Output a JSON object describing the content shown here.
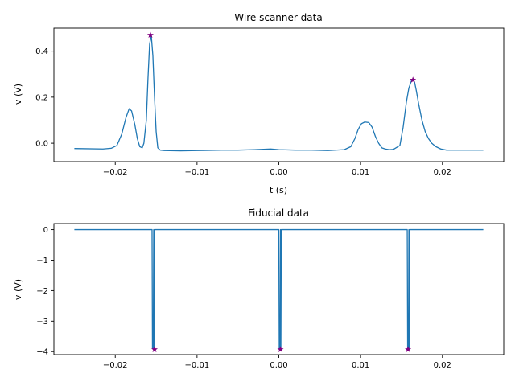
{
  "figure": {
    "background": "#ffffff",
    "line_color": "#1f77b4",
    "marker_color": "#800080",
    "marker_symbol": "star"
  },
  "chart_data": [
    {
      "type": "line",
      "title": "Wire scanner data",
      "xlabel": "t (s)",
      "ylabel": "v (V)",
      "xlim": [
        -0.0275,
        0.0275
      ],
      "ylim": [
        -0.08,
        0.5
      ],
      "xticks": [
        -0.02,
        -0.01,
        0.0,
        0.01,
        0.02
      ],
      "xtick_labels": [
        "−0.02",
        "−0.01",
        "0.00",
        "0.01",
        "0.02"
      ],
      "yticks": [
        0.0,
        0.2,
        0.4
      ],
      "ytick_labels": [
        "0.0",
        "0.2",
        "0.4"
      ],
      "grid": false,
      "series": [
        {
          "color": "#1f77b4",
          "x": [
            -0.025,
            -0.0215,
            -0.0205,
            -0.0198,
            -0.0192,
            -0.0187,
            -0.0183,
            -0.018,
            -0.0176,
            -0.0173,
            -0.017,
            -0.0167,
            -0.0165,
            -0.0162,
            -0.016,
            -0.0158,
            -0.0156,
            -0.0154,
            -0.0152,
            -0.015,
            -0.0148,
            -0.0145,
            -0.014,
            -0.012,
            -0.01,
            -0.007,
            -0.005,
            -0.003,
            -0.001,
            0.0,
            0.002,
            0.004,
            0.006,
            0.008,
            0.0088,
            0.0093,
            0.0097,
            0.0101,
            0.0105,
            0.011,
            0.0114,
            0.0118,
            0.0122,
            0.0126,
            0.013,
            0.0135,
            0.014,
            0.0148,
            0.0152,
            0.0156,
            0.0159,
            0.0162,
            0.0164,
            0.0166,
            0.0168,
            0.0171,
            0.0175,
            0.0179,
            0.0183,
            0.0187,
            0.0192,
            0.0198,
            0.0205,
            0.022,
            0.025
          ],
          "y": [
            -0.023,
            -0.025,
            -0.022,
            -0.01,
            0.04,
            0.11,
            0.15,
            0.14,
            0.08,
            0.02,
            -0.015,
            -0.02,
            0.0,
            0.1,
            0.28,
            0.43,
            0.47,
            0.38,
            0.2,
            0.05,
            -0.02,
            -0.03,
            -0.032,
            -0.033,
            -0.032,
            -0.03,
            -0.03,
            -0.028,
            -0.025,
            -0.028,
            -0.03,
            -0.03,
            -0.032,
            -0.028,
            -0.015,
            0.02,
            0.06,
            0.085,
            0.092,
            0.09,
            0.07,
            0.03,
            0.0,
            -0.02,
            -0.025,
            -0.028,
            -0.027,
            -0.01,
            0.07,
            0.18,
            0.24,
            0.27,
            0.278,
            0.265,
            0.23,
            0.17,
            0.1,
            0.05,
            0.02,
            0.0,
            -0.015,
            -0.025,
            -0.03,
            -0.03,
            -0.03
          ]
        }
      ],
      "peaks": {
        "x": [
          -0.0157,
          0.0164
        ],
        "y": [
          0.47,
          0.275
        ]
      }
    },
    {
      "type": "line",
      "title": "Fiducial data",
      "xlabel": "",
      "ylabel": "v (V)",
      "xlim": [
        -0.0275,
        0.0275
      ],
      "ylim": [
        -4.1,
        0.2
      ],
      "xticks": [
        -0.02,
        -0.01,
        0.0,
        0.01,
        0.02
      ],
      "xtick_labels": [
        "−0.02",
        "−0.01",
        "0.00",
        "0.01",
        "0.02"
      ],
      "yticks": [
        0,
        -1,
        -2,
        -3,
        -4
      ],
      "ytick_labels": [
        "0",
        "−1",
        "−2",
        "−3",
        "−4"
      ],
      "grid": false,
      "series": [
        {
          "color": "#1f77b4",
          "x": [
            -0.025,
            -0.0155,
            -0.01545,
            -0.01535,
            -0.0153,
            -0.01525,
            -0.0152,
            0.0,
            5e-05,
            0.00015,
            0.0002,
            0.00025,
            0.0003,
            0.0157,
            0.01575,
            0.01585,
            0.0159,
            0.01595,
            0.016,
            0.025
          ],
          "y": [
            0.0,
            0.0,
            -3.9,
            -3.9,
            0.0,
            -3.9,
            0.0,
            0.0,
            -3.9,
            -3.9,
            0.0,
            -3.9,
            0.0,
            0.0,
            -3.9,
            -3.9,
            0.0,
            -3.9,
            0.0,
            0.0
          ]
        }
      ],
      "peaks": {
        "x": [
          -0.0152,
          0.0002,
          0.0158
        ],
        "y": [
          -3.93,
          -3.93,
          -3.93
        ]
      }
    }
  ]
}
